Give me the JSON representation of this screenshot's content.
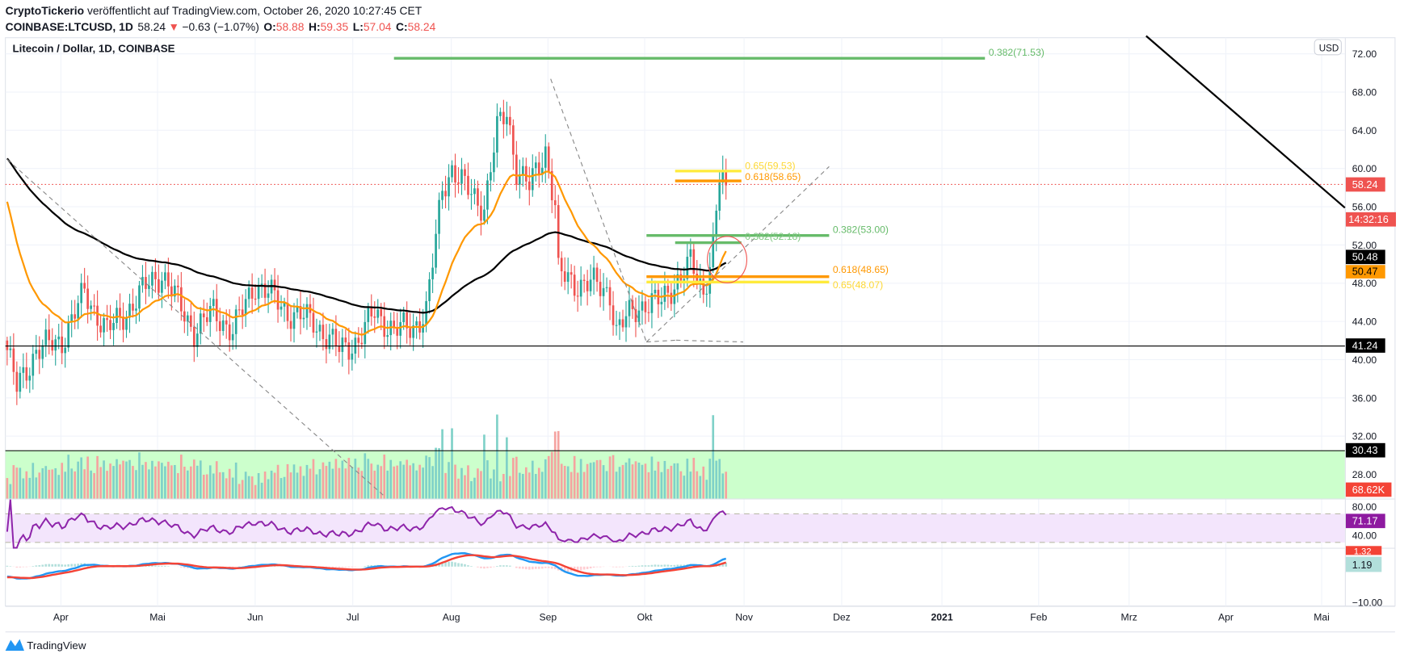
{
  "header": {
    "author": "CryptoTickerio",
    "published": " veröffentlicht auf TradingView.com, October 26, 2020 10:27:45 CET",
    "symbol": "COINBASE:LTCUSD, 1D",
    "last": "58.24",
    "change": "−0.63 (−1.07%)",
    "o_label": "O:",
    "o": "58.88",
    "h_label": "H:",
    "h": "59.35",
    "l_label": "L:",
    "l": "57.04",
    "c_label": "C:",
    "c": "58.24"
  },
  "chart_title": "Litecoin / Dollar, 1D, COINBASE",
  "currency_button": "USD",
  "footer_brand": "TradingView",
  "colors": {
    "up": "#26a69a",
    "down": "#ef5350",
    "ema": "#ff9800",
    "sma": "#000000",
    "rsi": "#8e24aa",
    "macd": "#2196f3",
    "signal": "#f44336"
  },
  "axis_labels": {
    "last_price": "58.24",
    "countdown": "14:32:16",
    "sma_value": "50.48",
    "ema_value": "50.47",
    "support": "41.24",
    "volume_line": "30.43",
    "volume": "68.62K",
    "rsi": "71.17",
    "macd_signal": "1.32",
    "macd": "1.19"
  },
  "fib_labels": {
    "top": "0.382(71.53)",
    "f65_high": "0.65(59.53)",
    "f618_high": "0.618(58.65)",
    "f382_53": "0.382(53.00)",
    "f382_52": "0.382(52.18)",
    "f618_low": "0.618(48.65)",
    "f65_low": "0.65(48.07)"
  },
  "chart_data": {
    "type": "candlestick",
    "title": "Litecoin / Dollar, 1D, COINBASE",
    "y_ticks": [
      "72.00",
      "68.00",
      "64.00",
      "60.00",
      "56.00",
      "52.00",
      "48.00",
      "44.00",
      "40.00",
      "36.00",
      "32.00",
      "28.00"
    ],
    "y_tick_values": [
      72,
      68,
      64,
      60,
      56,
      52,
      48,
      44,
      40,
      36,
      32,
      28
    ],
    "rsi_ticks": [
      "80.00",
      "40.00"
    ],
    "macd_ticks": [
      "−10.00"
    ],
    "x_ticks": [
      "Apr",
      "Mai",
      "Jun",
      "Jul",
      "Aug",
      "Sep",
      "Okt",
      "Nov",
      "Dez",
      "2021",
      "Feb",
      "Mrz",
      "Apr",
      "Mai"
    ],
    "ylim": [
      27,
      74
    ],
    "close_anchors_day_price": [
      [
        0,
        41
      ],
      [
        3,
        37
      ],
      [
        9,
        41
      ],
      [
        17,
        42
      ],
      [
        24,
        47
      ],
      [
        31,
        43
      ],
      [
        37,
        45
      ],
      [
        44,
        48
      ],
      [
        48,
        49
      ],
      [
        53,
        46
      ],
      [
        58,
        43
      ],
      [
        64,
        45
      ],
      [
        70,
        43
      ],
      [
        77,
        48
      ],
      [
        81,
        47
      ],
      [
        87,
        45
      ],
      [
        95,
        44
      ],
      [
        103,
        41
      ],
      [
        109,
        42
      ],
      [
        114,
        45
      ],
      [
        120,
        43
      ],
      [
        126,
        43.5
      ],
      [
        130,
        45
      ],
      [
        132,
        50
      ],
      [
        135,
        58
      ],
      [
        138,
        60
      ],
      [
        142,
        58
      ],
      [
        148,
        56
      ],
      [
        152,
        64
      ],
      [
        155,
        66
      ],
      [
        158,
        60
      ],
      [
        162,
        58
      ],
      [
        167,
        62
      ],
      [
        170,
        56
      ],
      [
        171,
        49
      ],
      [
        176,
        48
      ],
      [
        181,
        48
      ],
      [
        187,
        47
      ],
      [
        189,
        43
      ],
      [
        194,
        45
      ],
      [
        198,
        46
      ],
      [
        203,
        46
      ],
      [
        207,
        48
      ],
      [
        212,
        50
      ],
      [
        216,
        47
      ],
      [
        219,
        52
      ],
      [
        221,
        59
      ],
      [
        223,
        58.24
      ]
    ],
    "horizontal_levels": [
      41.24,
      30.43
    ],
    "fib_levels": [
      71.53,
      59.53,
      58.65,
      53.0,
      52.18,
      48.65,
      48.07
    ]
  }
}
